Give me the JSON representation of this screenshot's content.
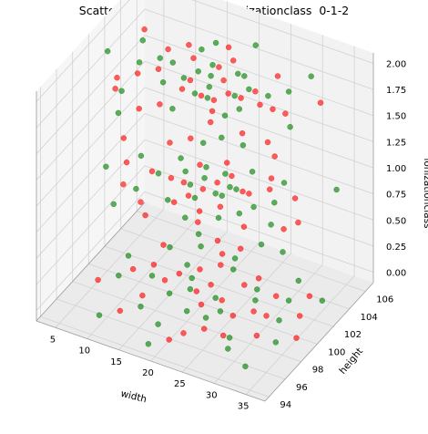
{
  "chart_data": {
    "type": "scatter",
    "projection": "3d",
    "title": "Scatter Plot  width-height-ionizationclass  0-1-2",
    "xlabel": "width",
    "ylabel": "height",
    "zlabel": "ionizationclass",
    "xlim": [
      2,
      38
    ],
    "ylim": [
      93.5,
      107
    ],
    "zlim": [
      -0.1,
      2.1
    ],
    "xticks": [
      "5",
      "10",
      "15",
      "20",
      "25",
      "30",
      "35"
    ],
    "yticks": [
      "94",
      "96",
      "98",
      "100",
      "102",
      "104",
      "106"
    ],
    "zticks": [
      "0.00",
      "0.25",
      "0.50",
      "0.75",
      "1.00",
      "1.25",
      "1.50",
      "1.75",
      "2.00"
    ],
    "grid": true,
    "legend": "none",
    "colors": {
      "class_a": "#008000",
      "class_b": "#ff0000"
    },
    "series": [
      {
        "color": "#008000",
        "points": [
          [
            8,
            99,
            0.0
          ],
          [
            11,
            103,
            0.0
          ],
          [
            14,
            97,
            0.0
          ],
          [
            17,
            101,
            0.0
          ],
          [
            20,
            104,
            0.0
          ],
          [
            23,
            98,
            0.0
          ],
          [
            26,
            102,
            0.0
          ],
          [
            29,
            96,
            0.0
          ],
          [
            32,
            100,
            0.0
          ],
          [
            35,
            103,
            0.0
          ],
          [
            10,
            95,
            0.0
          ],
          [
            13,
            105,
            0.0
          ],
          [
            16,
            99,
            0.0
          ],
          [
            19,
            94,
            0.0
          ],
          [
            22,
            100,
            0.0
          ],
          [
            25,
            106,
            0.0
          ],
          [
            28,
            97,
            0.0
          ],
          [
            31,
            102,
            0.0
          ],
          [
            34,
            98,
            0.0
          ],
          [
            7,
            101,
            0.0
          ],
          [
            12,
            100,
            0.0
          ],
          [
            15,
            102,
            0.0
          ],
          [
            18,
            96,
            0.0
          ],
          [
            21,
            103,
            0.0
          ],
          [
            24,
            99,
            0.0
          ],
          [
            27,
            101,
            0.0
          ],
          [
            30,
            104,
            0.0
          ],
          [
            33,
            95,
            0.0
          ],
          [
            20,
            98,
            0.0
          ],
          [
            18,
            100,
            0.0
          ],
          [
            9,
            101,
            1.0
          ],
          [
            12,
            98,
            1.0
          ],
          [
            15,
            104,
            1.0
          ],
          [
            18,
            100,
            1.0
          ],
          [
            21,
            97,
            1.0
          ],
          [
            24,
            103,
            1.0
          ],
          [
            27,
            99,
            1.0
          ],
          [
            30,
            101,
            1.0
          ],
          [
            33,
            97,
            1.0
          ],
          [
            36,
            104,
            1.0
          ],
          [
            11,
            96,
            1.0
          ],
          [
            14,
            102,
            1.0
          ],
          [
            17,
            98,
            1.0
          ],
          [
            20,
            105,
            1.0
          ],
          [
            23,
            101,
            1.0
          ],
          [
            26,
            95,
            1.0
          ],
          [
            29,
            103,
            1.0
          ],
          [
            32,
            99,
            1.0
          ],
          [
            6,
            99,
            1.0
          ],
          [
            19,
            101,
            1.0
          ],
          [
            22,
            100,
            1.0
          ],
          [
            25,
            98,
            1.0
          ],
          [
            16,
            101,
            1.0
          ],
          [
            28,
            100,
            1.0
          ],
          [
            13,
            100,
            1.0
          ],
          [
            21,
            102,
            1.0
          ],
          [
            24,
            101,
            1.0
          ],
          [
            18,
            102,
            1.0
          ],
          [
            20,
            99,
            1.0
          ],
          [
            23,
            100,
            1.0
          ],
          [
            8,
            102,
            2.0
          ],
          [
            11,
            97,
            2.0
          ],
          [
            14,
            101,
            2.0
          ],
          [
            17,
            104,
            2.0
          ],
          [
            20,
            99,
            2.0
          ],
          [
            23,
            102,
            2.0
          ],
          [
            26,
            98,
            2.0
          ],
          [
            29,
            101,
            2.0
          ],
          [
            32,
            104,
            2.0
          ],
          [
            35,
            99,
            2.0
          ],
          [
            10,
            100,
            2.0
          ],
          [
            13,
            95,
            2.0
          ],
          [
            16,
            103,
            2.0
          ],
          [
            19,
            97,
            2.0
          ],
          [
            22,
            105,
            2.0
          ],
          [
            25,
            100,
            2.0
          ],
          [
            28,
            96,
            2.0
          ],
          [
            31,
            102,
            2.0
          ],
          [
            5,
            100,
            2.0
          ],
          [
            18,
            101,
            2.0
          ],
          [
            21,
            100,
            2.0
          ],
          [
            24,
            102,
            2.0
          ],
          [
            27,
            99,
            2.0
          ],
          [
            15,
            99,
            2.0
          ],
          [
            20,
            101,
            2.0
          ],
          [
            12,
            101,
            2.0
          ],
          [
            22,
            99,
            2.0
          ],
          [
            26,
            101,
            2.0
          ],
          [
            19,
            102,
            2.0
          ],
          [
            17,
            100,
            2.0
          ]
        ]
      },
      {
        "color": "#ff0000",
        "points": [
          [
            9,
            100,
            0.0
          ],
          [
            12,
            96,
            0.0
          ],
          [
            15,
            101,
            0.0
          ],
          [
            18,
            104,
            0.0
          ],
          [
            21,
            99,
            0.0
          ],
          [
            24,
            102,
            0.0
          ],
          [
            27,
            97,
            0.0
          ],
          [
            30,
            100,
            0.0
          ],
          [
            33,
            103,
            0.0
          ],
          [
            36,
            99,
            0.0
          ],
          [
            10,
            103,
            0.0
          ],
          [
            13,
            98,
            0.0
          ],
          [
            16,
            105,
            0.0
          ],
          [
            19,
            100,
            0.0
          ],
          [
            22,
            96,
            0.0
          ],
          [
            25,
            103,
            0.0
          ],
          [
            28,
            100,
            0.0
          ],
          [
            31,
            98,
            0.0
          ],
          [
            34,
            101,
            0.0
          ],
          [
            6,
            98,
            0.0
          ],
          [
            14,
            100,
            0.0
          ],
          [
            17,
            102,
            0.0
          ],
          [
            20,
            101,
            0.0
          ],
          [
            23,
            100,
            0.0
          ],
          [
            26,
            99,
            0.0
          ],
          [
            29,
            102,
            0.0
          ],
          [
            11,
            101,
            0.0
          ],
          [
            21,
            95,
            0.0
          ],
          [
            24,
            97,
            0.0
          ],
          [
            19,
            103,
            0.0
          ],
          [
            8,
            100,
            1.0
          ],
          [
            11,
            103,
            1.0
          ],
          [
            14,
            97,
            1.0
          ],
          [
            17,
            100,
            1.0
          ],
          [
            20,
            103,
            1.0
          ],
          [
            23,
            97,
            1.0
          ],
          [
            26,
            101,
            1.0
          ],
          [
            29,
            98,
            1.0
          ],
          [
            32,
            102,
            1.0
          ],
          [
            35,
            100,
            1.0
          ],
          [
            10,
            98,
            1.0
          ],
          [
            13,
            104,
            1.0
          ],
          [
            16,
            96,
            1.0
          ],
          [
            19,
            99,
            1.0
          ],
          [
            22,
            102,
            1.0
          ],
          [
            25,
            105,
            1.0
          ],
          [
            28,
            102,
            1.0
          ],
          [
            31,
            96,
            1.0
          ],
          [
            34,
            99,
            1.0
          ],
          [
            5,
            102,
            1.0
          ],
          [
            15,
            100,
            1.0
          ],
          [
            18,
            98,
            1.0
          ],
          [
            21,
            101,
            1.0
          ],
          [
            24,
            99,
            1.0
          ],
          [
            27,
            103,
            1.0
          ],
          [
            20,
            100,
            1.0
          ],
          [
            22,
            98,
            1.0
          ],
          [
            17,
            102,
            1.0
          ],
          [
            25,
            101,
            1.0
          ],
          [
            12,
            100,
            1.0
          ],
          [
            9,
            98,
            2.0
          ],
          [
            12,
            102,
            2.0
          ],
          [
            15,
            96,
            2.0
          ],
          [
            18,
            99,
            2.0
          ],
          [
            21,
            103,
            2.0
          ],
          [
            24,
            98,
            2.0
          ],
          [
            27,
            101,
            2.0
          ],
          [
            30,
            97,
            2.0
          ],
          [
            33,
            100,
            2.0
          ],
          [
            36,
            102,
            2.0
          ],
          [
            7,
            103,
            2.0
          ],
          [
            10,
            97,
            2.0
          ],
          [
            13,
            100,
            2.0
          ],
          [
            16,
            102,
            2.0
          ],
          [
            19,
            104,
            2.0
          ],
          [
            22,
            101,
            2.0
          ],
          [
            25,
            97,
            2.0
          ],
          [
            28,
            103,
            2.0
          ],
          [
            31,
            100,
            2.0
          ],
          [
            34,
            97,
            2.0
          ],
          [
            14,
            103,
            2.0
          ],
          [
            17,
            97,
            2.0
          ],
          [
            20,
            102,
            2.0
          ],
          [
            23,
            99,
            2.0
          ],
          [
            26,
            100,
            2.0
          ],
          [
            18,
            100,
            2.0
          ],
          [
            21,
            99,
            2.0
          ],
          [
            24,
            100,
            2.0
          ],
          [
            11,
            99,
            2.0
          ],
          [
            29,
            100,
            2.0
          ]
        ]
      }
    ]
  }
}
